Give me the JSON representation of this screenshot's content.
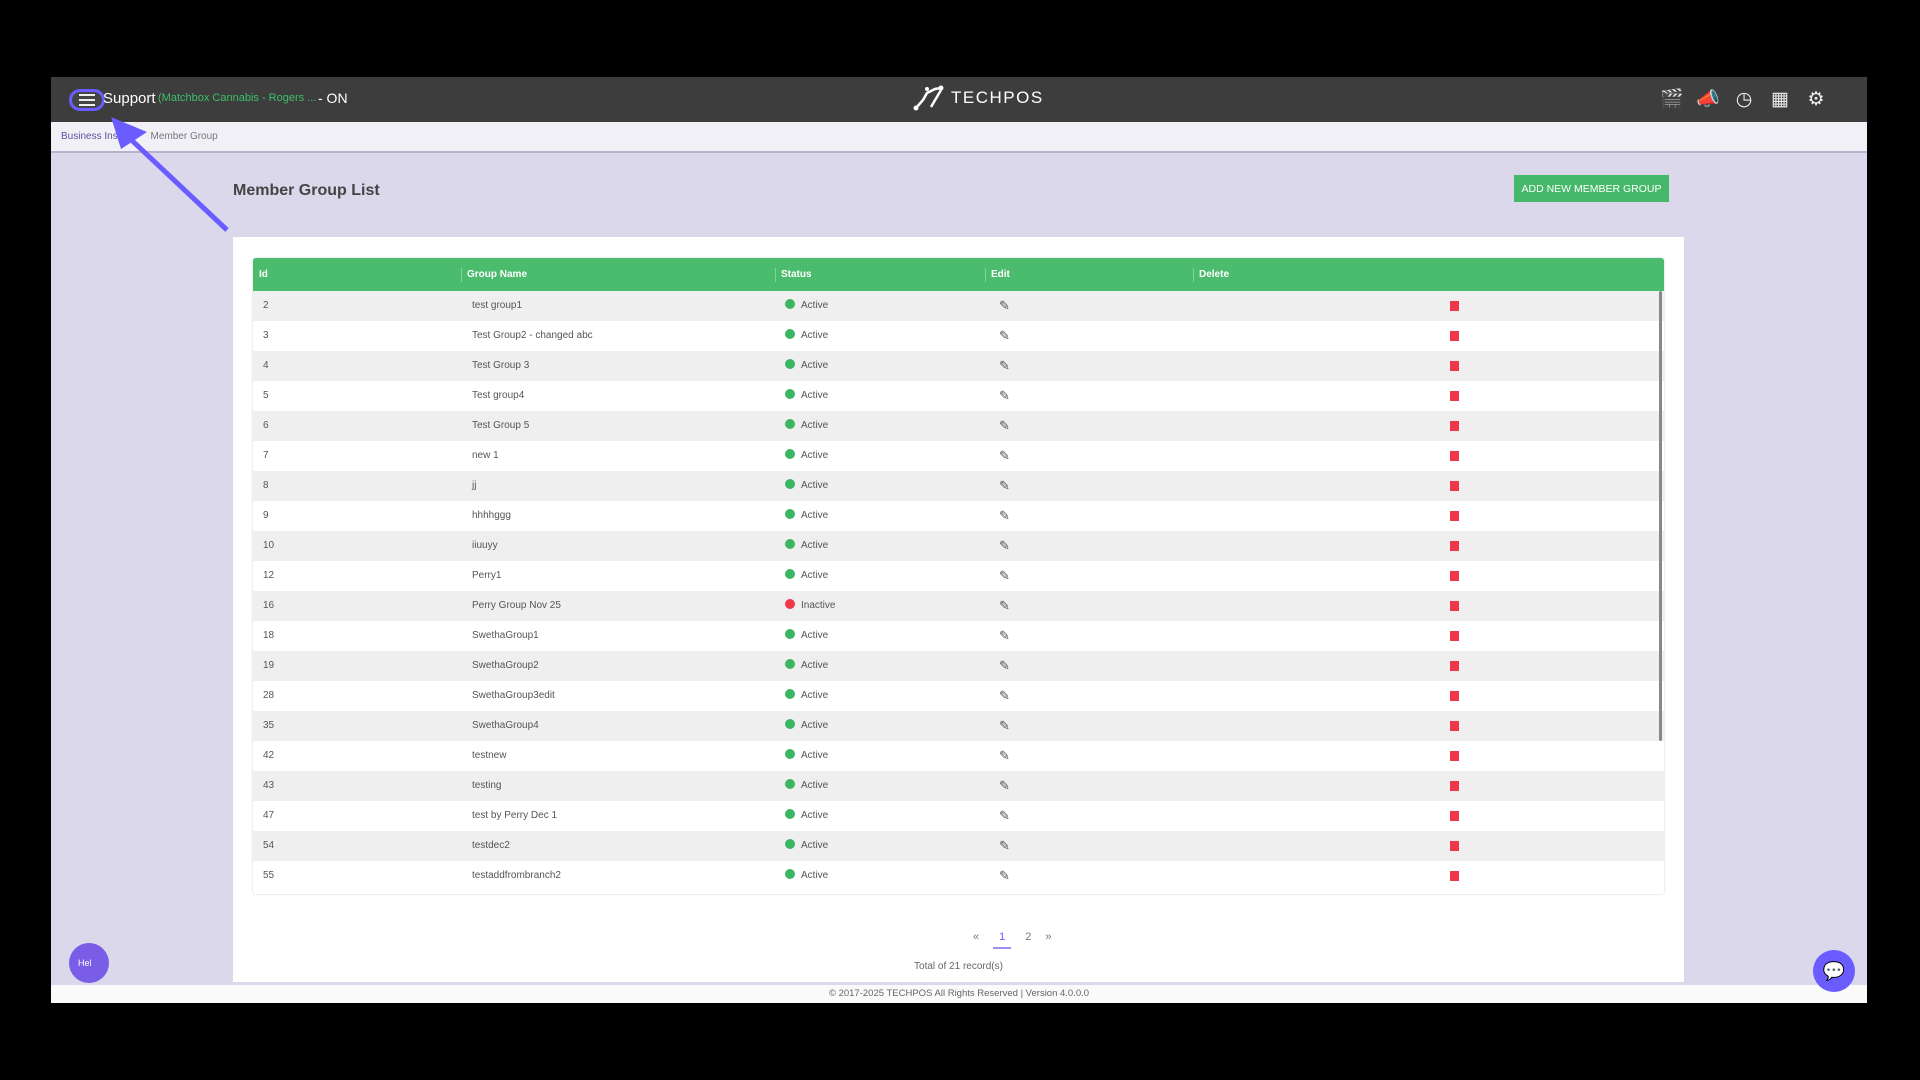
{
  "header": {
    "support": "Support",
    "store": "(Matchbox Cannabis - Rogers ...",
    "status": "- ON",
    "logo": "TECHPOS",
    "icons": [
      "video-clapper-icon",
      "megaphone-icon",
      "clock-icon",
      "store-icon",
      "gear-icon"
    ]
  },
  "breadcrumb": {
    "parent": "Business Ins",
    "current": "Member Group"
  },
  "page": {
    "title": "Member Group List",
    "add_button": "ADD NEW MEMBER GROUP"
  },
  "table": {
    "columns": [
      "Id",
      "Group Name",
      "Status",
      "Edit",
      "Delete"
    ],
    "rows": [
      [
        "2",
        "test group1",
        "Active"
      ],
      [
        "3",
        "Test Group2 - changed abc",
        "Active"
      ],
      [
        "4",
        "Test Group 3",
        "Active"
      ],
      [
        "5",
        "Test group4",
        "Active"
      ],
      [
        "6",
        "Test Group 5",
        "Active"
      ],
      [
        "7",
        "new 1",
        "Active"
      ],
      [
        "8",
        "jj",
        "Active"
      ],
      [
        "9",
        "hhhhggg",
        "Active"
      ],
      [
        "10",
        "iiuuyy",
        "Active"
      ],
      [
        "12",
        "Perry1",
        "Active"
      ],
      [
        "16",
        "Perry Group Nov 25",
        "Inactive"
      ],
      [
        "18",
        "SwethaGroup1",
        "Active"
      ],
      [
        "19",
        "SwethaGroup2",
        "Active"
      ],
      [
        "28",
        "SwethaGroup3edit",
        "Active"
      ],
      [
        "35",
        "SwethaGroup4",
        "Active"
      ],
      [
        "42",
        "testnew",
        "Active"
      ],
      [
        "43",
        "testing",
        "Active"
      ],
      [
        "47",
        "test by Perry Dec 1",
        "Active"
      ],
      [
        "54",
        "testdec2",
        "Active"
      ],
      [
        "55",
        "testaddfrombranch2",
        "Active"
      ]
    ]
  },
  "colors": {
    "active": "#3cb563",
    "inactive": "#f0364a",
    "header_green": "#4bbb6d",
    "accent": "#6a5cff"
  },
  "pagination": {
    "prev": "«",
    "pages": [
      "1",
      "2"
    ],
    "current": "1",
    "next": "»",
    "total": "Total of 21 record(s)"
  },
  "footer": "© 2017-2025 TECHPOS All Rights Reserved | Version 4.0.0.0",
  "help": "Hel"
}
